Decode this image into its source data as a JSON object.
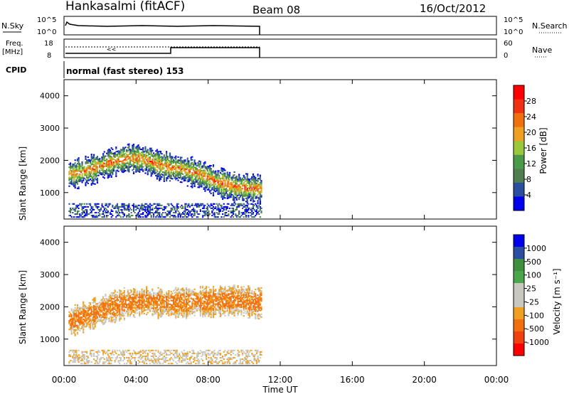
{
  "header": {
    "site": "Hankasalmi (fitACF)",
    "beam": "Beam 08",
    "date": "16/Oct/2012"
  },
  "aux_panels": {
    "nsky_label": "N.Sky",
    "nsky_ticks": [
      "10^5",
      "10^0"
    ],
    "nsearch_label": "N.Search",
    "nsearch_ticks": [
      "10^5",
      "10^0"
    ],
    "freq_label_1": "Freq.",
    "freq_label_2": "[MHz]",
    "freq_ticks": [
      "18",
      "8"
    ],
    "nave_label": "Nave",
    "nave_ticks": [
      "60",
      "0"
    ],
    "cpid_label": "CPID",
    "cpid_text": "normal (fast stereo) 153"
  },
  "colors": {
    "power_scale": [
      "#0000ee",
      "#2a4fa0",
      "#4f7f4f",
      "#4a9a4a",
      "#9ac83a",
      "#f0a020",
      "#f07010",
      "#f03010",
      "#ff0000"
    ],
    "velocity_scale": [
      "#ff0000",
      "#f04010",
      "#f07010",
      "#f0a020",
      "#c8c8c0",
      "#c8c8c0",
      "#4aa64a",
      "#3f8f3f",
      "#2a4fa0",
      "#0000ee"
    ]
  },
  "chart_data": [
    {
      "type": "heatmap",
      "title": "",
      "ylabel": "Slant Range [km]",
      "xlabel": "",
      "ylim": [
        180,
        4500
      ],
      "yticks": [
        1000,
        2000,
        3000,
        4000
      ],
      "x_range_hours": [
        0,
        24
      ],
      "colorbar": {
        "label": "Power [dB]",
        "ticks": [
          "28",
          "24",
          "20",
          "16",
          "12",
          "8",
          "4"
        ],
        "range": [
          0,
          32
        ]
      },
      "series": [
        {
          "name": "",
          "x": [
            0.5,
            1.5,
            2.5,
            3.5,
            4.5,
            5.5,
            6.5,
            7.5,
            8.5,
            9.5,
            10.5
          ],
          "values": [
            1550,
            1700,
            1900,
            2050,
            2000,
            1800,
            1700,
            1550,
            1300,
            1150,
            1100
          ]
        }
      ]
    },
    {
      "type": "heatmap",
      "title": "",
      "ylabel": "Slant Range [km]",
      "xlabel": "Time UT",
      "ylim": [
        180,
        4500
      ],
      "yticks": [
        1000,
        2000,
        3000,
        4000
      ],
      "xticks": [
        "00:00",
        "04:00",
        "08:00",
        "12:00",
        "16:00",
        "20:00",
        "00:00"
      ],
      "colorbar": {
        "label": "Velocity [m s⁻¹]",
        "ticks": [
          "1000",
          "500",
          "100",
          "25",
          "-25",
          "-100",
          "-500",
          "-1000"
        ],
        "range": [
          -1000,
          1000
        ]
      },
      "series": [
        {
          "name": "",
          "x": [
            0.5,
            1.5,
            2.5,
            3.5,
            4.5,
            5.5,
            6.5,
            7.5,
            8.5,
            9.5,
            10.5
          ],
          "values": [
            1550,
            1750,
            1950,
            2100,
            2150,
            2100,
            2100,
            2150,
            2150,
            2200,
            2100
          ]
        }
      ]
    }
  ]
}
